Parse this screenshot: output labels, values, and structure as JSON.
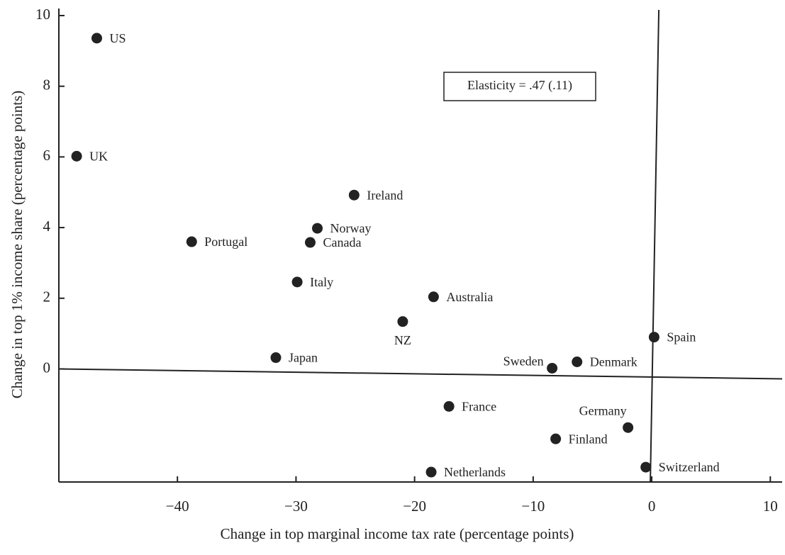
{
  "chart_data": {
    "type": "scatter",
    "x_label": "Change in top marginal income tax rate (percentage points)",
    "y_label": "Change in top 1% income share (percentage points)",
    "annotation": "Elasticity = .47 (.11)",
    "point_labels": [
      "US",
      "UK",
      "Ireland",
      "Norway",
      "Portugal",
      "Canada",
      "Italy",
      "Australia",
      "NZ",
      "Japan",
      "Spain",
      "Denmark",
      "Sweden",
      "France",
      "Germany",
      "Finland",
      "Netherlands",
      "Switzerland"
    ],
    "x": [
      -46.8,
      -48.5,
      -25.1,
      -28.2,
      -38.8,
      -28.8,
      -29.9,
      -18.4,
      -21.0,
      -31.7,
      0.2,
      -6.3,
      -8.4,
      -17.1,
      -2.0,
      -8.1,
      -18.6,
      -0.5
    ],
    "values": [
      9.36,
      6.02,
      4.92,
      3.98,
      3.6,
      3.58,
      2.46,
      2.04,
      1.34,
      0.32,
      0.9,
      0.2,
      0.02,
      -1.06,
      -1.66,
      -1.98,
      -2.92,
      -2.78
    ],
    "color": "#222222",
    "xlim": [
      -50,
      11
    ],
    "ylim": [
      -3.2,
      10.2
    ],
    "xticks": [
      {
        "value": -40,
        "label": "−40"
      },
      {
        "value": -30,
        "label": "−30"
      },
      {
        "value": -20,
        "label": "−20"
      },
      {
        "value": -10,
        "label": "−10"
      },
      0,
      10
    ],
    "yticks": [
      0,
      2,
      4,
      6,
      8,
      10
    ]
  }
}
